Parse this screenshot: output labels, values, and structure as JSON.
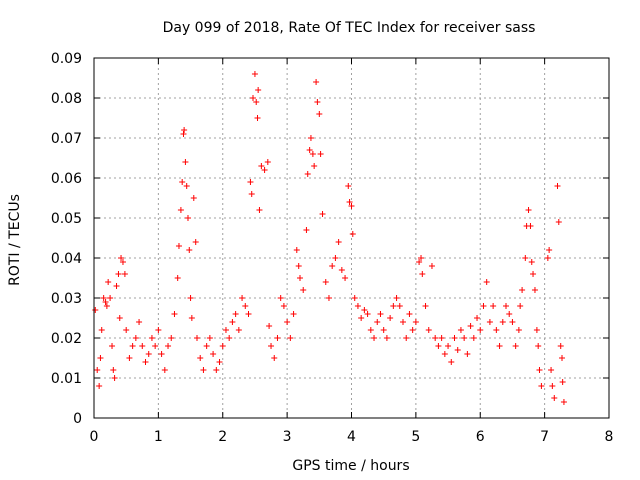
{
  "chart_data": {
    "type": "scatter",
    "title": "Day 099 of 2018, Rate Of TEC Index for receiver sass",
    "xlabel": "GPS time / hours",
    "ylabel": "ROTI / TECUs",
    "xlim": [
      0,
      8
    ],
    "ylim": [
      0,
      0.09
    ],
    "x_ticks": [
      0,
      1,
      2,
      3,
      4,
      5,
      6,
      7,
      8
    ],
    "x_tick_labels": [
      "0",
      "1",
      "2",
      "3",
      "4",
      "5",
      "6",
      "7",
      "8"
    ],
    "y_ticks": [
      0,
      0.01,
      0.02,
      0.03,
      0.04,
      0.05,
      0.06,
      0.07,
      0.08,
      0.09
    ],
    "y_tick_labels": [
      "0",
      "0.01",
      "0.02",
      "0.03",
      "0.04",
      "0.05",
      "0.06",
      "0.07",
      "0.08",
      "0.09"
    ],
    "grid": true,
    "marker": "+",
    "marker_color": "#ff0000",
    "series": [
      {
        "name": "ROTI",
        "points": [
          [
            0.02,
            0.027
          ],
          [
            0.05,
            0.012
          ],
          [
            0.08,
            0.008
          ],
          [
            0.1,
            0.015
          ],
          [
            0.12,
            0.022
          ],
          [
            0.15,
            0.03
          ],
          [
            0.18,
            0.029
          ],
          [
            0.2,
            0.028
          ],
          [
            0.22,
            0.034
          ],
          [
            0.25,
            0.03
          ],
          [
            0.28,
            0.018
          ],
          [
            0.3,
            0.012
          ],
          [
            0.32,
            0.01
          ],
          [
            0.35,
            0.033
          ],
          [
            0.38,
            0.036
          ],
          [
            0.4,
            0.025
          ],
          [
            0.42,
            0.04
          ],
          [
            0.45,
            0.039
          ],
          [
            0.48,
            0.036
          ],
          [
            0.5,
            0.022
          ],
          [
            0.55,
            0.015
          ],
          [
            0.6,
            0.018
          ],
          [
            0.65,
            0.02
          ],
          [
            0.7,
            0.024
          ],
          [
            0.75,
            0.018
          ],
          [
            0.8,
            0.014
          ],
          [
            0.85,
            0.016
          ],
          [
            0.9,
            0.02
          ],
          [
            0.95,
            0.018
          ],
          [
            1.0,
            0.022
          ],
          [
            1.05,
            0.016
          ],
          [
            1.1,
            0.012
          ],
          [
            1.15,
            0.018
          ],
          [
            1.2,
            0.02
          ],
          [
            1.25,
            0.026
          ],
          [
            1.3,
            0.035
          ],
          [
            1.32,
            0.043
          ],
          [
            1.35,
            0.052
          ],
          [
            1.37,
            0.059
          ],
          [
            1.39,
            0.071
          ],
          [
            1.4,
            0.072
          ],
          [
            1.42,
            0.064
          ],
          [
            1.44,
            0.058
          ],
          [
            1.46,
            0.05
          ],
          [
            1.48,
            0.042
          ],
          [
            1.5,
            0.03
          ],
          [
            1.52,
            0.025
          ],
          [
            1.55,
            0.055
          ],
          [
            1.58,
            0.044
          ],
          [
            1.6,
            0.02
          ],
          [
            1.65,
            0.015
          ],
          [
            1.7,
            0.012
          ],
          [
            1.75,
            0.018
          ],
          [
            1.8,
            0.02
          ],
          [
            1.85,
            0.016
          ],
          [
            1.9,
            0.012
          ],
          [
            1.95,
            0.014
          ],
          [
            2.0,
            0.018
          ],
          [
            2.05,
            0.022
          ],
          [
            2.1,
            0.02
          ],
          [
            2.15,
            0.024
          ],
          [
            2.2,
            0.026
          ],
          [
            2.25,
            0.022
          ],
          [
            2.3,
            0.03
          ],
          [
            2.35,
            0.028
          ],
          [
            2.4,
            0.026
          ],
          [
            2.43,
            0.059
          ],
          [
            2.45,
            0.056
          ],
          [
            2.47,
            0.08
          ],
          [
            2.5,
            0.086
          ],
          [
            2.52,
            0.079
          ],
          [
            2.54,
            0.075
          ],
          [
            2.55,
            0.082
          ],
          [
            2.57,
            0.052
          ],
          [
            2.6,
            0.063
          ],
          [
            2.65,
            0.062
          ],
          [
            2.7,
            0.064
          ],
          [
            2.72,
            0.023
          ],
          [
            2.75,
            0.018
          ],
          [
            2.8,
            0.015
          ],
          [
            2.85,
            0.02
          ],
          [
            2.9,
            0.03
          ],
          [
            2.95,
            0.028
          ],
          [
            3.0,
            0.024
          ],
          [
            3.05,
            0.02
          ],
          [
            3.1,
            0.026
          ],
          [
            3.15,
            0.042
          ],
          [
            3.18,
            0.038
          ],
          [
            3.2,
            0.035
          ],
          [
            3.25,
            0.032
          ],
          [
            3.3,
            0.047
          ],
          [
            3.32,
            0.061
          ],
          [
            3.35,
            0.067
          ],
          [
            3.37,
            0.07
          ],
          [
            3.4,
            0.066
          ],
          [
            3.42,
            0.063
          ],
          [
            3.45,
            0.084
          ],
          [
            3.47,
            0.079
          ],
          [
            3.5,
            0.076
          ],
          [
            3.52,
            0.066
          ],
          [
            3.55,
            0.051
          ],
          [
            3.6,
            0.034
          ],
          [
            3.65,
            0.03
          ],
          [
            3.7,
            0.038
          ],
          [
            3.75,
            0.04
          ],
          [
            3.8,
            0.044
          ],
          [
            3.85,
            0.037
          ],
          [
            3.9,
            0.035
          ],
          [
            3.95,
            0.058
          ],
          [
            3.97,
            0.054
          ],
          [
            4.0,
            0.053
          ],
          [
            4.02,
            0.046
          ],
          [
            4.05,
            0.03
          ],
          [
            4.1,
            0.028
          ],
          [
            4.15,
            0.025
          ],
          [
            4.2,
            0.027
          ],
          [
            4.25,
            0.026
          ],
          [
            4.3,
            0.022
          ],
          [
            4.35,
            0.02
          ],
          [
            4.4,
            0.024
          ],
          [
            4.45,
            0.026
          ],
          [
            4.5,
            0.022
          ],
          [
            4.55,
            0.02
          ],
          [
            4.6,
            0.025
          ],
          [
            4.65,
            0.028
          ],
          [
            4.7,
            0.03
          ],
          [
            4.75,
            0.028
          ],
          [
            4.8,
            0.024
          ],
          [
            4.85,
            0.02
          ],
          [
            4.9,
            0.026
          ],
          [
            4.95,
            0.022
          ],
          [
            5.0,
            0.024
          ],
          [
            5.05,
            0.039
          ],
          [
            5.08,
            0.04
          ],
          [
            5.1,
            0.036
          ],
          [
            5.15,
            0.028
          ],
          [
            5.2,
            0.022
          ],
          [
            5.25,
            0.038
          ],
          [
            5.3,
            0.02
          ],
          [
            5.35,
            0.018
          ],
          [
            5.4,
            0.02
          ],
          [
            5.45,
            0.016
          ],
          [
            5.5,
            0.018
          ],
          [
            5.55,
            0.014
          ],
          [
            5.6,
            0.02
          ],
          [
            5.65,
            0.017
          ],
          [
            5.7,
            0.022
          ],
          [
            5.75,
            0.02
          ],
          [
            5.8,
            0.016
          ],
          [
            5.85,
            0.023
          ],
          [
            5.9,
            0.02
          ],
          [
            5.95,
            0.025
          ],
          [
            6.0,
            0.022
          ],
          [
            6.05,
            0.028
          ],
          [
            6.1,
            0.034
          ],
          [
            6.15,
            0.024
          ],
          [
            6.2,
            0.028
          ],
          [
            6.25,
            0.022
          ],
          [
            6.3,
            0.018
          ],
          [
            6.35,
            0.024
          ],
          [
            6.4,
            0.028
          ],
          [
            6.45,
            0.026
          ],
          [
            6.5,
            0.024
          ],
          [
            6.55,
            0.018
          ],
          [
            6.6,
            0.022
          ],
          [
            6.62,
            0.028
          ],
          [
            6.65,
            0.032
          ],
          [
            6.7,
            0.04
          ],
          [
            6.72,
            0.048
          ],
          [
            6.75,
            0.052
          ],
          [
            6.78,
            0.048
          ],
          [
            6.8,
            0.039
          ],
          [
            6.82,
            0.036
          ],
          [
            6.85,
            0.032
          ],
          [
            6.88,
            0.022
          ],
          [
            6.9,
            0.018
          ],
          [
            6.92,
            0.012
          ],
          [
            6.95,
            0.008
          ],
          [
            7.05,
            0.04
          ],
          [
            7.07,
            0.042
          ],
          [
            7.1,
            0.012
          ],
          [
            7.12,
            0.008
          ],
          [
            7.15,
            0.005
          ],
          [
            7.2,
            0.058
          ],
          [
            7.22,
            0.049
          ],
          [
            7.25,
            0.018
          ],
          [
            7.27,
            0.015
          ],
          [
            7.28,
            0.009
          ],
          [
            7.3,
            0.004
          ]
        ]
      }
    ]
  }
}
